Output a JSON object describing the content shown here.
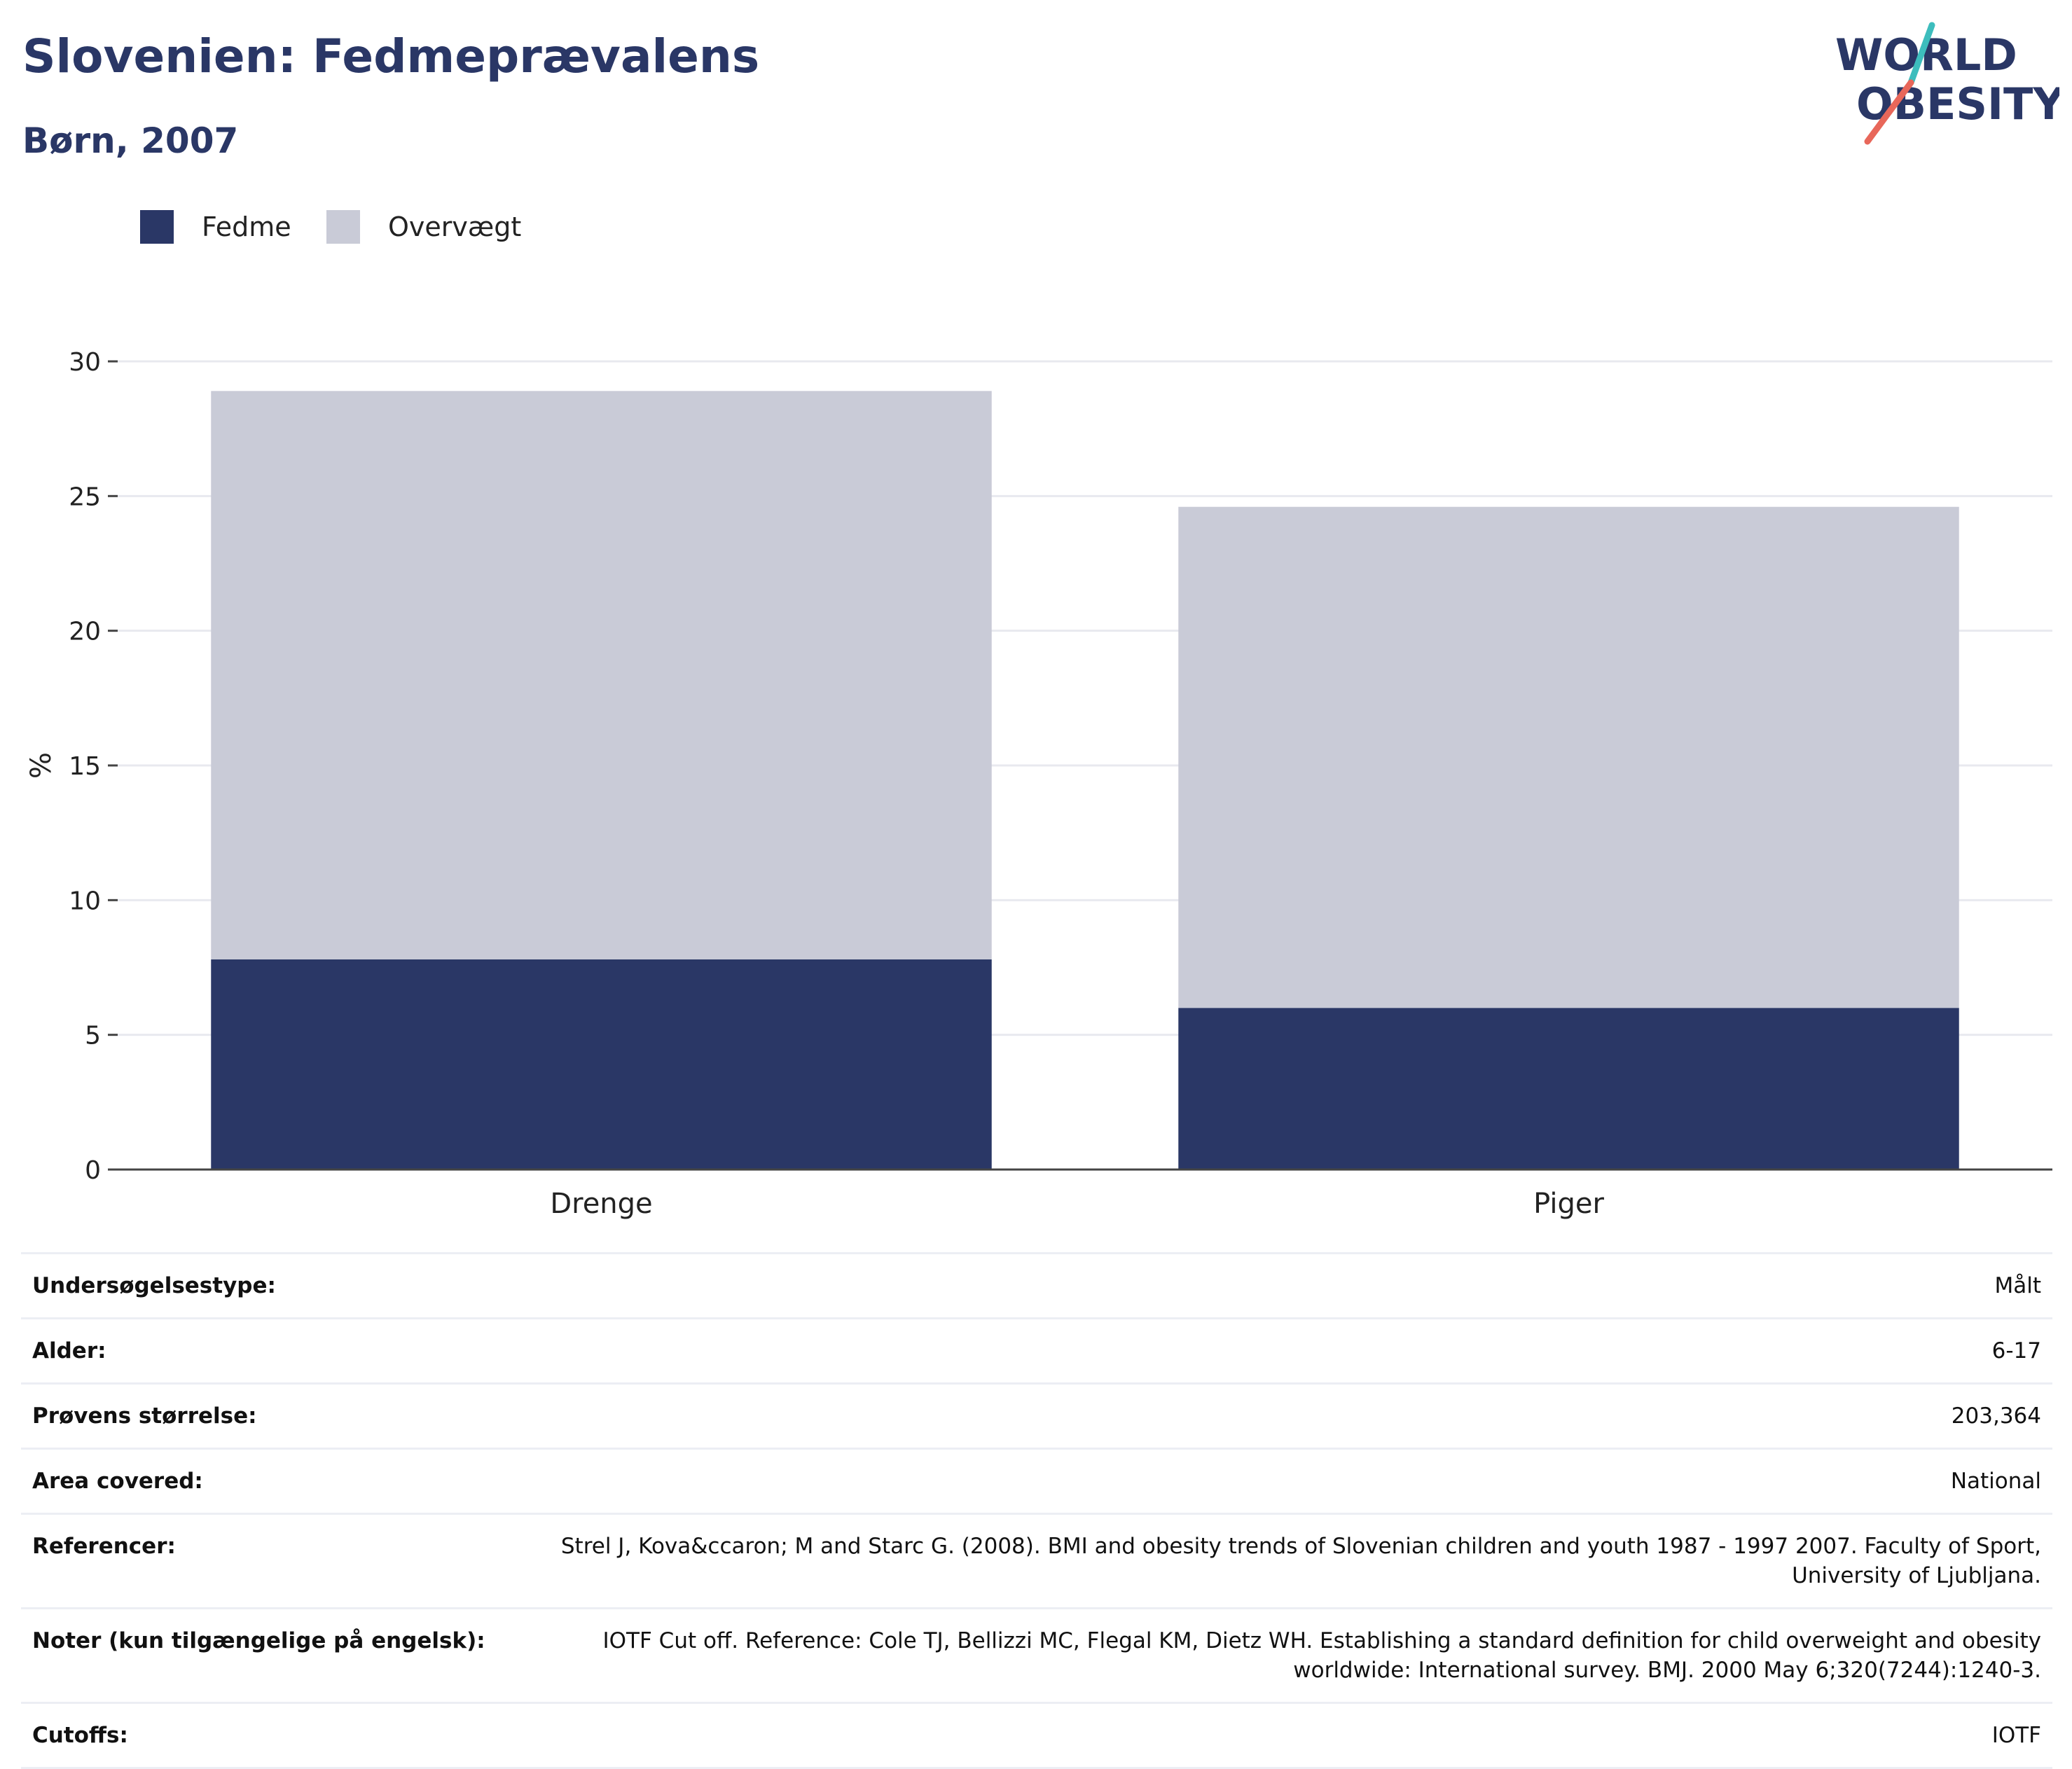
{
  "header": {
    "title": "Slovenien: Fedmeprævalens",
    "subtitle": "Børn, 2007",
    "logo_line1": "WORLD",
    "logo_line2": "OBESITY"
  },
  "colors": {
    "fedme": "#2a3766",
    "overvaegt": "#c9cbd7",
    "logo_text": "#2a3766",
    "logo_teal": "#3dbdbd",
    "logo_coral": "#e8675a"
  },
  "legend": [
    {
      "label": "Fedme",
      "color_key": "fedme"
    },
    {
      "label": "Overvægt",
      "color_key": "overvaegt"
    }
  ],
  "chart_data": {
    "type": "bar",
    "stacked": true,
    "categories": [
      "Drenge",
      "Piger"
    ],
    "series": [
      {
        "name": "Fedme",
        "values": [
          7.8,
          6.0
        ]
      },
      {
        "name": "Overvægt",
        "values": [
          21.1,
          18.6
        ]
      }
    ],
    "totals": [
      28.9,
      24.6
    ],
    "ylabel": "%",
    "ylim": [
      0,
      30
    ],
    "yticks": [
      0,
      5,
      10,
      15,
      20,
      25,
      30
    ],
    "grid": true,
    "legend_position": "top-left"
  },
  "info": [
    {
      "key": "Undersøgelsestype:",
      "value": "Målt"
    },
    {
      "key": "Alder:",
      "value": "6-17"
    },
    {
      "key": "Prøvens størrelse:",
      "value": "203,364"
    },
    {
      "key": "Area covered:",
      "value": "National"
    },
    {
      "key": "Referencer:",
      "value": "Strel J, Kova&ccaron; M and Starc G. (2008). BMI and obesity trends of Slovenian children and youth 1987 - 1997 2007. Faculty of Sport, University of Ljubljana."
    },
    {
      "key": "Noter (kun tilgængelige på engelsk):",
      "value": "IOTF Cut off. Reference: Cole TJ, Bellizzi MC, Flegal KM, Dietz WH. Establishing a standard definition for child overweight and obesity worldwide: International survey. BMJ. 2000 May 6;320(7244):1240-3."
    },
    {
      "key": "Cutoffs:",
      "value": "IOTF"
    }
  ]
}
